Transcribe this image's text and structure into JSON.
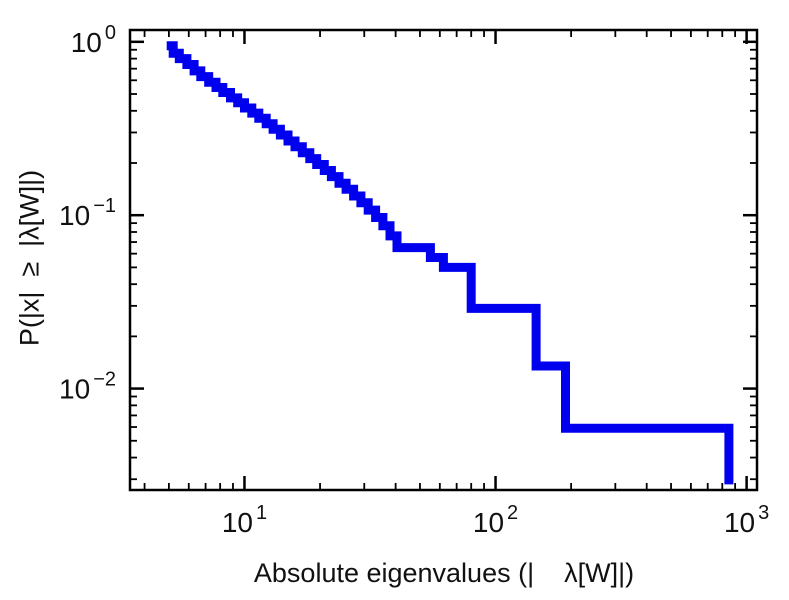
{
  "chart_data": {
    "type": "line",
    "subtype": "step-ccdf-loglog",
    "title": "",
    "xlabel": "Absolute eigenvalues (|    λ[W]|)",
    "ylabel": "P(|x|  ≥  |λ[W]|)",
    "x_scale": "log",
    "y_scale": "log",
    "xlim": [
      3.5,
      1100
    ],
    "ylim": [
      0.0026,
      1.17
    ],
    "x_major_ticks": [
      10,
      100,
      1000
    ],
    "y_major_ticks": [
      1,
      0.1,
      0.01
    ],
    "x_tick_labels": [
      "10^1",
      "10^2",
      "10^3"
    ],
    "y_tick_labels": [
      "10^0",
      "10^-1",
      "10^-2"
    ],
    "grid": "off",
    "legend": "none",
    "frame_color": "#000000",
    "text_color": "#111111",
    "line_color": "#0000ee",
    "line_width": 9,
    "points": [
      [
        4.9,
        0.95
      ],
      [
        5.2,
        0.86
      ],
      [
        5.5,
        0.8
      ],
      [
        5.9,
        0.74
      ],
      [
        6.3,
        0.68
      ],
      [
        6.7,
        0.63
      ],
      [
        7.2,
        0.585
      ],
      [
        7.7,
        0.545
      ],
      [
        8.2,
        0.51
      ],
      [
        8.8,
        0.475
      ],
      [
        9.4,
        0.445
      ],
      [
        10.0,
        0.415
      ],
      [
        10.7,
        0.388
      ],
      [
        11.4,
        0.362
      ],
      [
        12.2,
        0.337
      ],
      [
        13.0,
        0.313
      ],
      [
        13.9,
        0.29
      ],
      [
        14.9,
        0.268
      ],
      [
        15.9,
        0.248
      ],
      [
        17.0,
        0.229
      ],
      [
        18.2,
        0.212
      ],
      [
        19.4,
        0.196
      ],
      [
        20.8,
        0.181
      ],
      [
        22.2,
        0.167
      ],
      [
        23.8,
        0.153
      ],
      [
        25.4,
        0.141
      ],
      [
        27.2,
        0.129
      ],
      [
        29.1,
        0.118
      ],
      [
        31.1,
        0.107
      ],
      [
        33.3,
        0.097
      ],
      [
        35.6,
        0.087
      ],
      [
        38.0,
        0.076
      ],
      [
        40.5,
        0.065
      ],
      [
        55,
        0.057
      ],
      [
        62,
        0.05
      ],
      [
        80,
        0.029
      ],
      [
        145,
        0.0135
      ],
      [
        190,
        0.0059
      ],
      [
        850,
        0.0028
      ]
    ]
  }
}
